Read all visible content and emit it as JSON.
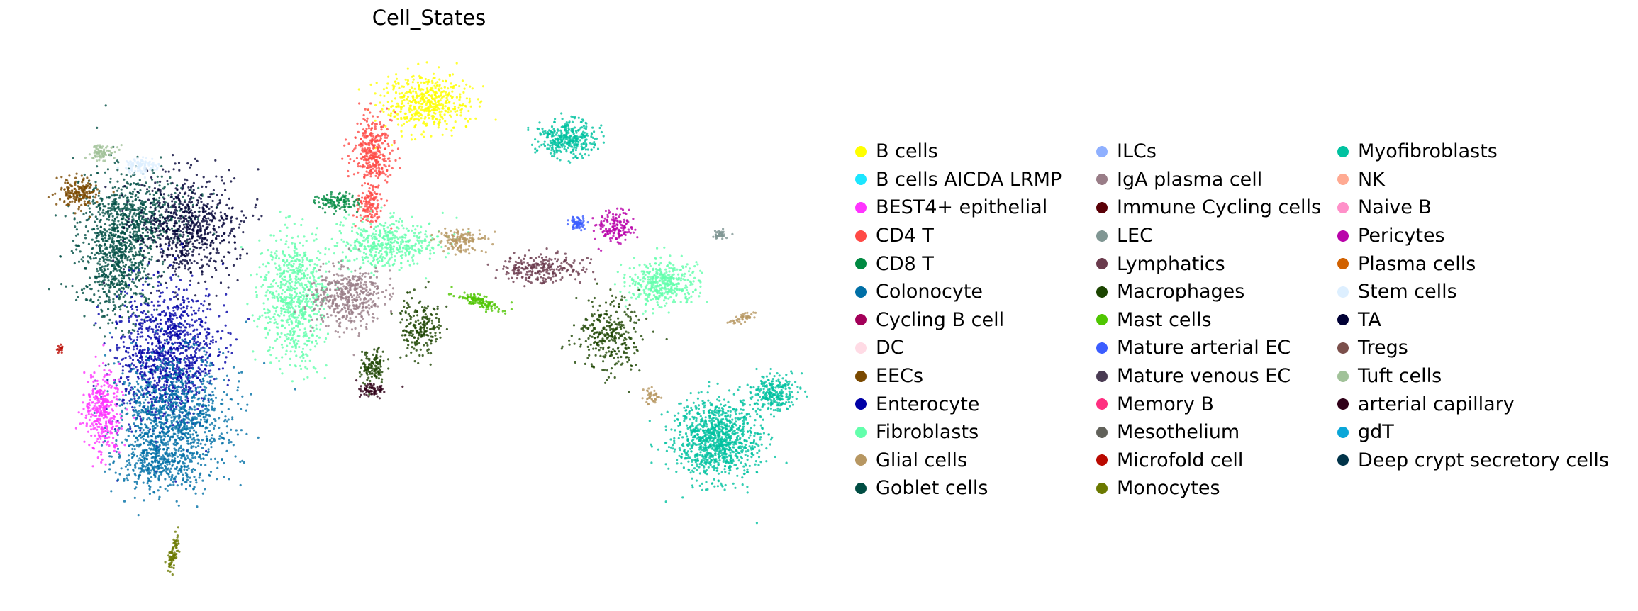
{
  "chart_data": {
    "type": "scatter",
    "title": "Cell_States",
    "xlabel": "",
    "ylabel": "",
    "grid": false,
    "legend_position": "right",
    "legend_columns": 3,
    "series": [
      {
        "name": "B cells",
        "color": "#ffff00"
      },
      {
        "name": "B cells AICDA LRMP",
        "color": "#1ce6ff"
      },
      {
        "name": "BEST4+ epithelial",
        "color": "#ff34ff"
      },
      {
        "name": "CD4 T",
        "color": "#ff4a46"
      },
      {
        "name": "CD8 T",
        "color": "#008941"
      },
      {
        "name": "Colonocyte",
        "color": "#006fa6"
      },
      {
        "name": "Cycling B cell",
        "color": "#a30059"
      },
      {
        "name": "DC",
        "color": "#ffdbe5"
      },
      {
        "name": "EECs",
        "color": "#7a4900"
      },
      {
        "name": "Enterocyte",
        "color": "#0000a6"
      },
      {
        "name": "Fibroblasts",
        "color": "#63ffac"
      },
      {
        "name": "Glial cells",
        "color": "#b79762"
      },
      {
        "name": "Goblet cells",
        "color": "#004d43"
      },
      {
        "name": "ILCs",
        "color": "#8fb0ff"
      },
      {
        "name": "IgA plasma cell",
        "color": "#997d87"
      },
      {
        "name": "Immune Cycling cells",
        "color": "#5a0007"
      },
      {
        "name": "LEC",
        "color": "#809693"
      },
      {
        "name": "Lymphatics",
        "color": "#6a3a4c"
      },
      {
        "name": "Macrophages",
        "color": "#1b4400"
      },
      {
        "name": "Mast cells",
        "color": "#4fc601"
      },
      {
        "name": "Mature arterial EC",
        "color": "#3b5dff"
      },
      {
        "name": "Mature venous EC",
        "color": "#4a3b53"
      },
      {
        "name": "Memory B",
        "color": "#ff2f80"
      },
      {
        "name": "Mesothelium",
        "color": "#61615a"
      },
      {
        "name": "Microfold cell",
        "color": "#ba0900"
      },
      {
        "name": "Monocytes",
        "color": "#6b7900"
      },
      {
        "name": "Myofibroblasts",
        "color": "#00c2a0"
      },
      {
        "name": "NK",
        "color": "#ffaa92"
      },
      {
        "name": "Naive B",
        "color": "#ff90c9"
      },
      {
        "name": "Pericytes",
        "color": "#b903aa"
      },
      {
        "name": "Plasma cells",
        "color": "#d16100"
      },
      {
        "name": "Stem cells",
        "color": "#ddefff"
      },
      {
        "name": "TA",
        "color": "#000035"
      },
      {
        "name": "Tregs",
        "color": "#7b4f4b"
      },
      {
        "name": "Tuft cells",
        "color": "#a1c299"
      },
      {
        "name": "arterial capillary",
        "color": "#300018"
      },
      {
        "name": "gdT",
        "color": "#0aa6d8"
      },
      {
        "name": "Deep crypt secretory cells",
        "color": "#013349"
      }
    ]
  }
}
